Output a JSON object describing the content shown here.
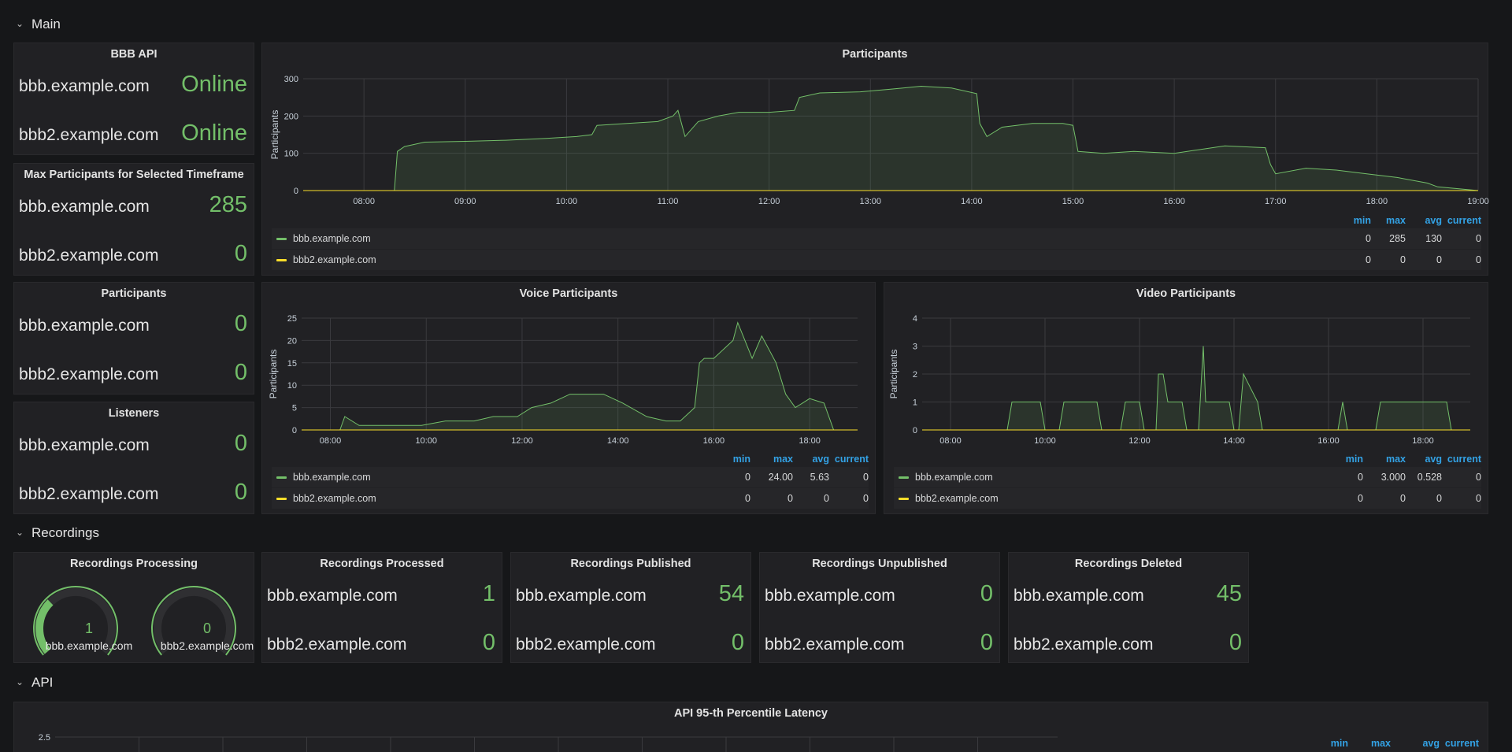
{
  "rows": {
    "main": "Main",
    "recordings": "Recordings",
    "api": "API"
  },
  "colors": {
    "green": "#73bf69",
    "yellow": "#fade2a",
    "blue": "#33a2e5"
  },
  "stat_panels": [
    {
      "title": "BBB API",
      "items": [
        {
          "host": "bbb.example.com",
          "value": "Online"
        },
        {
          "host": "bbb2.example.com",
          "value": "Online"
        }
      ]
    },
    {
      "title": "Max Participants for Selected Timeframe",
      "items": [
        {
          "host": "bbb.example.com",
          "value": "285"
        },
        {
          "host": "bbb2.example.com",
          "value": "0"
        }
      ]
    },
    {
      "title": "Participants",
      "items": [
        {
          "host": "bbb.example.com",
          "value": "0"
        },
        {
          "host": "bbb2.example.com",
          "value": "0"
        }
      ]
    },
    {
      "title": "Listeners",
      "items": [
        {
          "host": "bbb.example.com",
          "value": "0"
        },
        {
          "host": "bbb2.example.com",
          "value": "0"
        }
      ]
    }
  ],
  "recording_panels": [
    {
      "title": "Recordings Processed",
      "items": [
        {
          "host": "bbb.example.com",
          "value": "1"
        },
        {
          "host": "bbb2.example.com",
          "value": "0"
        }
      ]
    },
    {
      "title": "Recordings Published",
      "items": [
        {
          "host": "bbb.example.com",
          "value": "54"
        },
        {
          "host": "bbb2.example.com",
          "value": "0"
        }
      ]
    },
    {
      "title": "Recordings Unpublished",
      "items": [
        {
          "host": "bbb.example.com",
          "value": "0"
        },
        {
          "host": "bbb2.example.com",
          "value": "0"
        }
      ]
    },
    {
      "title": "Recordings Deleted",
      "items": [
        {
          "host": "bbb.example.com",
          "value": "45"
        },
        {
          "host": "bbb2.example.com",
          "value": "0"
        }
      ]
    }
  ],
  "gauges": {
    "title": "Recordings Processing",
    "items": [
      {
        "host": "bbb.example.com",
        "value": "1",
        "fraction": 0.33
      },
      {
        "host": "bbb2.example.com",
        "value": "0",
        "fraction": 0
      }
    ]
  },
  "legend_cols": {
    "min": "min",
    "max": "max",
    "avg": "avg",
    "current": "current"
  },
  "graphs": {
    "participants": {
      "title": "Participants",
      "legend": [
        {
          "name": "bbb.example.com",
          "min": "0",
          "max": "285",
          "avg": "130",
          "current": "0"
        },
        {
          "name": "bbb2.example.com",
          "min": "0",
          "max": "0",
          "avg": "0",
          "current": "0"
        }
      ]
    },
    "voice": {
      "title": "Voice Participants",
      "legend": [
        {
          "name": "bbb.example.com",
          "min": "0",
          "max": "24.00",
          "avg": "5.63",
          "current": "0"
        },
        {
          "name": "bbb2.example.com",
          "min": "0",
          "max": "0",
          "avg": "0",
          "current": "0"
        }
      ]
    },
    "video": {
      "title": "Video Participants",
      "legend": [
        {
          "name": "bbb.example.com",
          "min": "0",
          "max": "3.000",
          "avg": "0.528",
          "current": "0"
        },
        {
          "name": "bbb2.example.com",
          "min": "0",
          "max": "0",
          "avg": "0",
          "current": "0"
        }
      ]
    },
    "api": {
      "title": "API 95-th Percentile Latency"
    }
  },
  "chart_data": [
    {
      "type": "area",
      "title": "Participants",
      "ylabel": "Participants",
      "ylim": [
        0,
        300
      ],
      "yticks": [
        "0",
        "100",
        "200",
        "300"
      ],
      "xticks": [
        "08:00",
        "09:00",
        "10:00",
        "11:00",
        "12:00",
        "13:00",
        "14:00",
        "15:00",
        "16:00",
        "17:00",
        "18:00",
        "19:00"
      ],
      "xlim": [
        7.4,
        19.0
      ],
      "series": [
        {
          "name": "bbb.example.com",
          "x": [
            7.4,
            8.3,
            8.33,
            8.4,
            8.6,
            9.0,
            9.4,
            9.8,
            10.1,
            10.25,
            10.3,
            10.6,
            10.9,
            11.05,
            11.1,
            11.17,
            11.3,
            11.5,
            11.7,
            12.0,
            12.25,
            12.3,
            12.5,
            12.9,
            13.2,
            13.5,
            13.8,
            14.05,
            14.08,
            14.15,
            14.3,
            14.6,
            14.9,
            15.0,
            15.05,
            15.3,
            15.6,
            16.0,
            16.2,
            16.5,
            16.9,
            16.95,
            17.0,
            17.3,
            17.6,
            17.9,
            18.2,
            18.5,
            18.6,
            19.0
          ],
          "y": [
            0,
            0,
            105,
            118,
            130,
            132,
            135,
            140,
            145,
            150,
            175,
            180,
            185,
            200,
            215,
            145,
            185,
            200,
            210,
            210,
            215,
            250,
            262,
            265,
            272,
            280,
            275,
            260,
            180,
            145,
            170,
            180,
            180,
            175,
            105,
            100,
            105,
            100,
            108,
            120,
            115,
            70,
            45,
            60,
            55,
            45,
            35,
            20,
            10,
            0
          ]
        },
        {
          "name": "bbb2.example.com",
          "x": [
            7.4,
            19.0
          ],
          "y": [
            0,
            0
          ]
        }
      ]
    },
    {
      "type": "area",
      "title": "Voice Participants",
      "ylabel": "Participants",
      "ylim": [
        0,
        25
      ],
      "yticks": [
        "0",
        "5",
        "10",
        "15",
        "20",
        "25"
      ],
      "xticks": [
        "08:00",
        "10:00",
        "12:00",
        "14:00",
        "16:00",
        "18:00"
      ],
      "xlim": [
        7.4,
        19.0
      ],
      "series": [
        {
          "name": "bbb.example.com",
          "x": [
            7.4,
            8.2,
            8.3,
            8.6,
            9.3,
            9.9,
            10.4,
            11.0,
            11.4,
            11.6,
            11.9,
            12.2,
            12.6,
            13.0,
            13.4,
            13.7,
            14.1,
            14.6,
            15.0,
            15.3,
            15.6,
            15.7,
            15.8,
            16.0,
            16.4,
            16.5,
            16.8,
            17.0,
            17.3,
            17.5,
            17.7,
            17.85,
            18.0,
            18.3,
            18.5,
            18.6,
            19.0
          ],
          "y": [
            0,
            0,
            3,
            1,
            1,
            1,
            2,
            2,
            3,
            3,
            3,
            5,
            6,
            8,
            8,
            8,
            6,
            3,
            2,
            2,
            5,
            15,
            16,
            16,
            20,
            24,
            16,
            21,
            15,
            8,
            5,
            6,
            7,
            6,
            0,
            0,
            0
          ]
        },
        {
          "name": "bbb2.example.com",
          "x": [
            7.4,
            19.0
          ],
          "y": [
            0,
            0
          ]
        }
      ]
    },
    {
      "type": "area",
      "title": "Video Participants",
      "ylabel": "Participants",
      "ylim": [
        0,
        4
      ],
      "yticks": [
        "0",
        "1",
        "2",
        "3",
        "4"
      ],
      "xticks": [
        "08:00",
        "10:00",
        "12:00",
        "14:00",
        "16:00",
        "18:00"
      ],
      "xlim": [
        7.4,
        19.0
      ],
      "series": [
        {
          "name": "bbb.example.com",
          "x": [
            7.4,
            9.2,
            9.3,
            9.9,
            10.0,
            10.3,
            10.4,
            11.1,
            11.2,
            11.6,
            11.7,
            12.0,
            12.1,
            12.35,
            12.4,
            12.5,
            12.6,
            12.9,
            13.0,
            13.25,
            13.35,
            13.4,
            13.5,
            13.9,
            14.0,
            14.1,
            14.2,
            14.5,
            14.6,
            16.2,
            16.3,
            16.4,
            16.5,
            17.0,
            17.1,
            18.5,
            18.6,
            19.0
          ],
          "y": [
            0,
            0,
            1,
            1,
            0,
            0,
            1,
            1,
            0,
            0,
            1,
            1,
            0,
            0,
            2,
            2,
            1,
            1,
            0,
            0,
            3,
            1,
            1,
            1,
            0,
            0,
            2,
            1,
            0,
            0,
            1,
            0,
            0,
            0,
            1,
            1,
            0,
            0
          ]
        },
        {
          "name": "bbb2.example.com",
          "x": [
            7.4,
            19.0
          ],
          "y": [
            0,
            0
          ]
        }
      ]
    },
    {
      "type": "line",
      "title": "API 95-th Percentile Latency",
      "yticks": [
        "2.5"
      ]
    }
  ]
}
